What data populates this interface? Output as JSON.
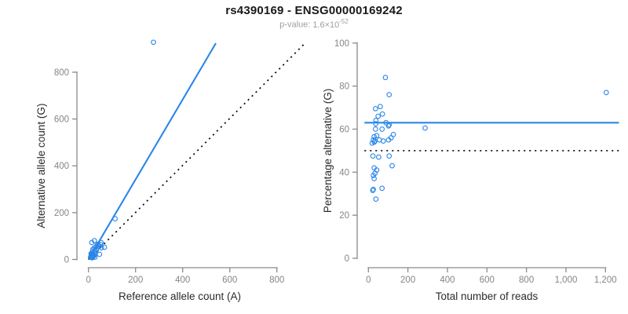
{
  "header": {
    "title": "rs4390169 - ENSG00000169242",
    "subtitle_label": "p-value:",
    "subtitle_mantissa": "1.6×10",
    "subtitle_exponent": "-52"
  },
  "colors": {
    "accent_blue": "#2b86e8",
    "dotted_black": "#000000",
    "axis_gray": "#8a8a8a",
    "tick_label_gray": "#858585",
    "axis_title_color": "#2b2b2b",
    "title_color": "#1a1a1a",
    "subtitle_gray": "#9e9e9e",
    "background": "#ffffff"
  },
  "chart_data": [
    {
      "name": "allele-count-scatter",
      "type": "scatter",
      "xlabel": "Reference allele count (A)",
      "ylabel": "Alternative allele count (G)",
      "xlim": [
        0,
        920
      ],
      "ylim": [
        0,
        950
      ],
      "xticks": [
        0,
        200,
        400,
        600,
        800
      ],
      "yticks": [
        0,
        200,
        400,
        600,
        800
      ],
      "xtick_labels": [
        "0",
        "200",
        "400",
        "600",
        "800"
      ],
      "ytick_labels": [
        "0",
        "200",
        "400",
        "600",
        "800"
      ],
      "grid": false,
      "legend": "none",
      "lines": [
        {
          "name": "regression-line",
          "style": "solid",
          "color": "accent",
          "slope": 1.71,
          "points": [
            [
              0,
              0
            ],
            [
              541,
              924
            ]
          ]
        },
        {
          "name": "identity-line",
          "style": "dotted",
          "color": "black",
          "slope": 1.0,
          "points": [
            [
              0,
              0
            ],
            [
              920,
              924
            ]
          ]
        }
      ],
      "points": [
        [
          14,
          72
        ],
        [
          25,
          80
        ],
        [
          18,
          42
        ],
        [
          11,
          25
        ],
        [
          23,
          48
        ],
        [
          17,
          32
        ],
        [
          14,
          24
        ],
        [
          33,
          56
        ],
        [
          14,
          23
        ],
        [
          40,
          65
        ],
        [
          14,
          22
        ],
        [
          28,
          41
        ],
        [
          39,
          63
        ],
        [
          113,
          174
        ],
        [
          54,
          72
        ],
        [
          18,
          24
        ],
        [
          51,
          64
        ],
        [
          13,
          16
        ],
        [
          11,
          14
        ],
        [
          25,
          31
        ],
        [
          46,
          56
        ],
        [
          34,
          41
        ],
        [
          15,
          18
        ],
        [
          9,
          10
        ],
        [
          30,
          35
        ],
        [
          12,
          11
        ],
        [
          28,
          25
        ],
        [
          55,
          50
        ],
        [
          68,
          52
        ],
        [
          17,
          12
        ],
        [
          25,
          17
        ],
        [
          20,
          13
        ],
        [
          15,
          10
        ],
        [
          18,
          11
        ],
        [
          47,
          22
        ],
        [
          17,
          8
        ],
        [
          15,
          7
        ],
        [
          28,
          10
        ],
        [
          276,
          928
        ]
      ]
    },
    {
      "name": "percentage-alternative-scatter",
      "type": "scatter",
      "xlabel": "Total number of reads",
      "ylabel": "Percentage alternative (G)",
      "xlim": [
        0,
        1270
      ],
      "ylim": [
        0,
        100
      ],
      "xticks": [
        0,
        200,
        400,
        600,
        800,
        1000,
        1200
      ],
      "yticks": [
        0,
        20,
        40,
        60,
        80,
        100
      ],
      "xtick_labels": [
        "0",
        "200",
        "400",
        "600",
        "800",
        "1,000",
        "1,200"
      ],
      "ytick_labels": [
        "0",
        "20",
        "40",
        "60",
        "80",
        "100"
      ],
      "grid": false,
      "legend": "none",
      "lines": [
        {
          "name": "mean-percentage-line",
          "style": "solid",
          "color": "accent",
          "value": 63,
          "points": [
            [
              -20,
              63
            ],
            [
              1268,
              63
            ]
          ]
        },
        {
          "name": "fifty-percent-line",
          "style": "dotted",
          "color": "black",
          "value": 50,
          "points": [
            [
              -20,
              50
            ],
            [
              1268,
              50
            ]
          ]
        }
      ],
      "points": [
        [
          86,
          84
        ],
        [
          105,
          76
        ],
        [
          60,
          70.5
        ],
        [
          36,
          69.5
        ],
        [
          71,
          67
        ],
        [
          49,
          66
        ],
        [
          38,
          64
        ],
        [
          89,
          63
        ],
        [
          37,
          62.5
        ],
        [
          105,
          62
        ],
        [
          36,
          60
        ],
        [
          69,
          60
        ],
        [
          102,
          61.5
        ],
        [
          287,
          60.5
        ],
        [
          126,
          57.5
        ],
        [
          42,
          57
        ],
        [
          115,
          56
        ],
        [
          29,
          56.5
        ],
        [
          25,
          55
        ],
        [
          56,
          55
        ],
        [
          102,
          55
        ],
        [
          75,
          54.5
        ],
        [
          33,
          54.5
        ],
        [
          19,
          53.5
        ],
        [
          30,
          54
        ],
        [
          23,
          47.5
        ],
        [
          52,
          47
        ],
        [
          105,
          47.5
        ],
        [
          120,
          43
        ],
        [
          29,
          42
        ],
        [
          42,
          41
        ],
        [
          33,
          39.5
        ],
        [
          25,
          38.5
        ],
        [
          29,
          37
        ],
        [
          69,
          32.5
        ],
        [
          25,
          32
        ],
        [
          22,
          31.5
        ],
        [
          38,
          27.5
        ],
        [
          1204,
          77
        ]
      ]
    }
  ]
}
